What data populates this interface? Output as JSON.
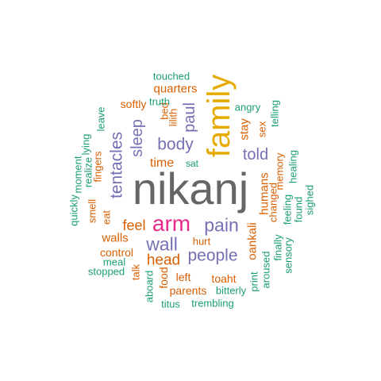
{
  "words": {
    "nikanj": "nikanj",
    "family": "family",
    "arm": "arm",
    "pain": "pain",
    "wall": "wall",
    "people": "people",
    "tentacles": "tentacles",
    "body": "body",
    "sleep": "sleep",
    "paul": "paul",
    "told": "told",
    "head": "head",
    "feel": "feel",
    "time": "time",
    "quarters": "quarters",
    "softly": "softly",
    "touched": "touched",
    "truth": "truth",
    "bed": "bed",
    "lilith": "lilith",
    "angry": "angry",
    "telling": "telling",
    "stay": "stay",
    "sex": "sex",
    "humans": "humans",
    "changed": "changed",
    "memory": "memory",
    "healing": "healing",
    "feeling": "feeling",
    "found": "found",
    "sighed": "sighed",
    "oankali": "oankali",
    "aroused": "aroused",
    "finally": "finally",
    "sensory": "sensory",
    "print": "print",
    "sat": "sat",
    "leave": "leave",
    "lying": "lying",
    "moment": "moment",
    "realize": "realize",
    "fingers": "fingers",
    "eat": "eat",
    "smell": "smell",
    "quickly": "quickly",
    "walls": "walls",
    "control": "control",
    "meal": "meal",
    "stopped": "stopped",
    "hurt": "hurt",
    "talk": "talk",
    "food": "food",
    "left": "left",
    "toaht": "toaht",
    "parents": "parents",
    "bitterly": "bitterly",
    "aboard": "aboard",
    "titus": "titus",
    "trembling": "trembling"
  }
}
